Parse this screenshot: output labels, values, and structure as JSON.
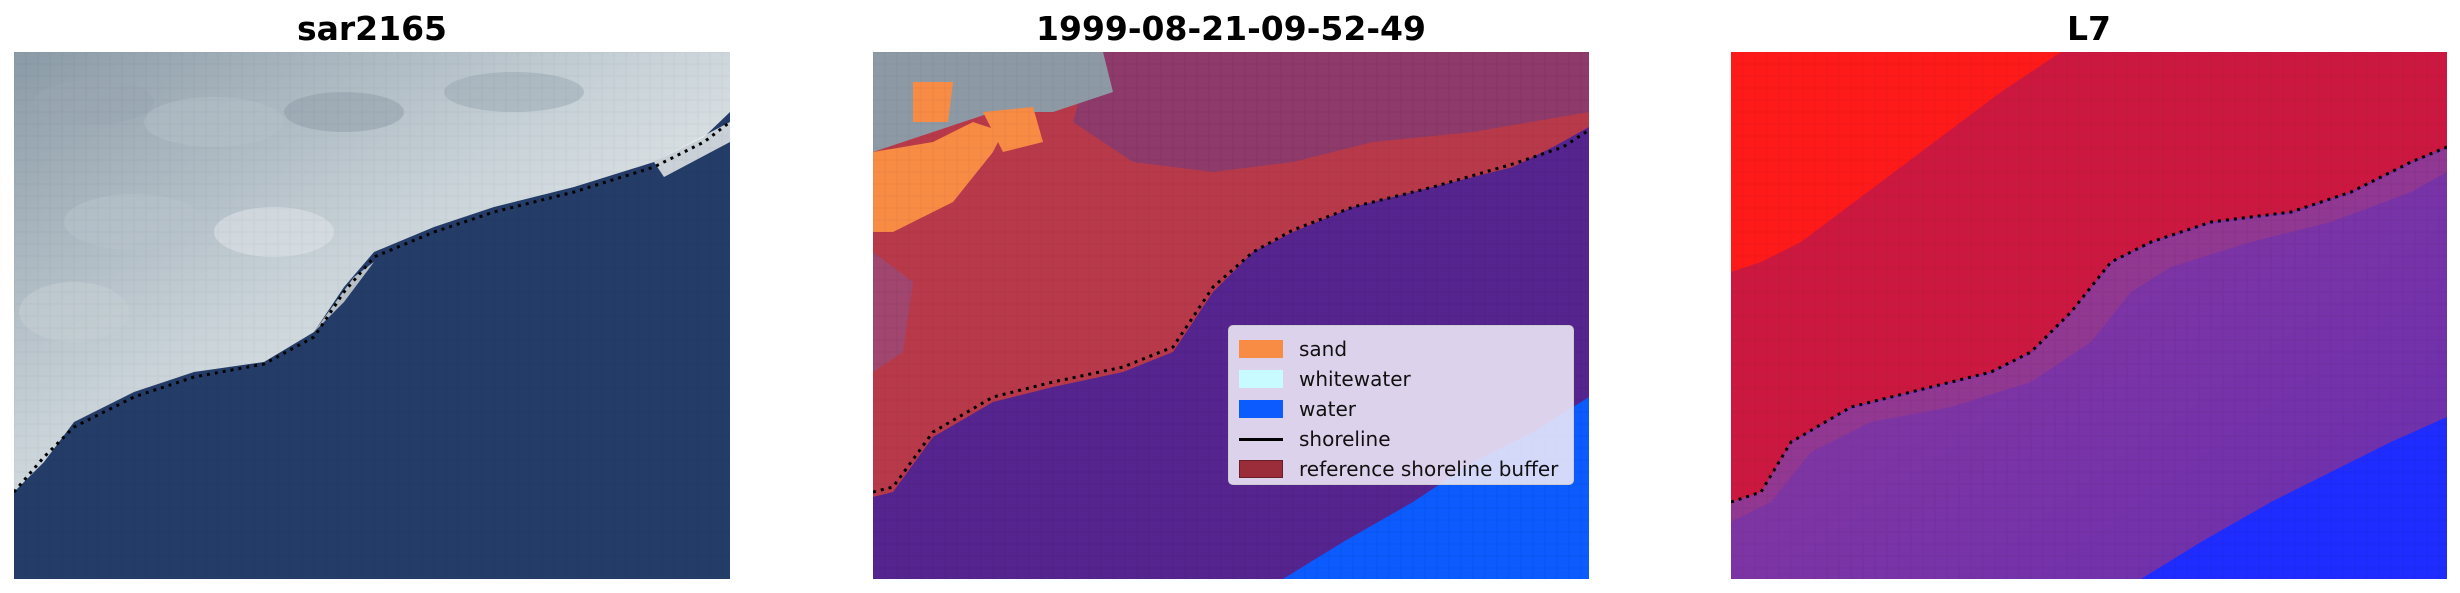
{
  "panels": [
    {
      "title": "sar2165"
    },
    {
      "title": "1999-08-21-09-52-49"
    },
    {
      "title": "L7"
    }
  ],
  "legend": {
    "items": [
      {
        "label": "sand",
        "color": "#f98c45",
        "kind": "patch"
      },
      {
        "label": "whitewater",
        "color": "#c7fbff",
        "kind": "patch"
      },
      {
        "label": "water",
        "color": "#0b5bff",
        "kind": "patch"
      },
      {
        "label": "shoreline",
        "color": "#000000",
        "kind": "line"
      },
      {
        "label": "reference shoreline buffer",
        "color": "#9b2d3a",
        "kind": "patch"
      }
    ]
  },
  "colors": {
    "rgb_water": "#243c68",
    "rgb_foam": "#e9eef2",
    "class_buffer": "#b83a4a",
    "class_water": "#55248f",
    "class_sand": "#f98c45",
    "mndwi_red": "#ff1a1a",
    "mndwi_crimson": "#cc1840",
    "mndwi_purple": "#7a3aa6",
    "mndwi_blue": "#1f2cff"
  }
}
